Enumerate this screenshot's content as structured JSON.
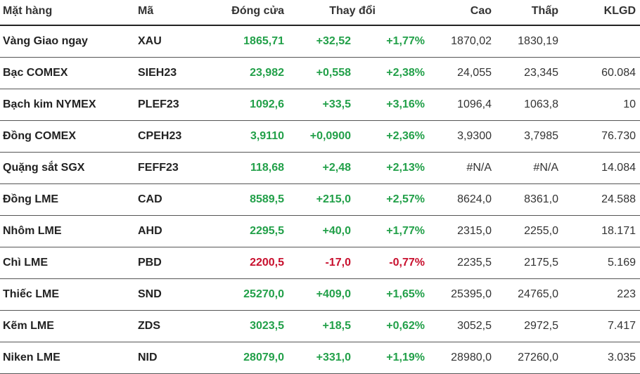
{
  "table": {
    "headers": {
      "name": "Mặt hàng",
      "code": "Mã",
      "close": "Đóng cửa",
      "change": "Thay đổi",
      "high": "Cao",
      "low": "Thấp",
      "volume": "KLGD"
    },
    "rows": [
      {
        "name": "Vàng Giao ngay",
        "code": "XAU",
        "close": "1865,71",
        "change": "+32,52",
        "pct": "+1,77%",
        "high": "1870,02",
        "low": "1830,19",
        "volume": "",
        "direction": "up"
      },
      {
        "name": "Bạc COMEX",
        "code": "SIEH23",
        "close": "23,982",
        "change": "+0,558",
        "pct": "+2,38%",
        "high": "24,055",
        "low": "23,345",
        "volume": "60.084",
        "direction": "up"
      },
      {
        "name": "Bạch kim NYMEX",
        "code": "PLEF23",
        "close": "1092,6",
        "change": "+33,5",
        "pct": "+3,16%",
        "high": "1096,4",
        "low": "1063,8",
        "volume": "10",
        "direction": "up"
      },
      {
        "name": "Đồng COMEX",
        "code": "CPEH23",
        "close": "3,9110",
        "change": "+0,0900",
        "pct": "+2,36%",
        "high": "3,9300",
        "low": "3,7985",
        "volume": "76.730",
        "direction": "up"
      },
      {
        "name": "Quặng sắt SGX",
        "code": "FEFF23",
        "close": "118,68",
        "change": "+2,48",
        "pct": "+2,13%",
        "high": "#N/A",
        "low": "#N/A",
        "volume": "14.084",
        "direction": "up"
      },
      {
        "name": "Đồng LME",
        "code": "CAD",
        "close": "8589,5",
        "change": "+215,0",
        "pct": "+2,57%",
        "high": "8624,0",
        "low": "8361,0",
        "volume": "24.588",
        "direction": "up"
      },
      {
        "name": "Nhôm LME",
        "code": "AHD",
        "close": "2295,5",
        "change": "+40,0",
        "pct": "+1,77%",
        "high": "2315,0",
        "low": "2255,0",
        "volume": "18.171",
        "direction": "up"
      },
      {
        "name": "Chì LME",
        "code": "PBD",
        "close": "2200,5",
        "change": "-17,0",
        "pct": "-0,77%",
        "high": "2235,5",
        "low": "2175,5",
        "volume": "5.169",
        "direction": "down"
      },
      {
        "name": "Thiếc LME",
        "code": "SND",
        "close": "25270,0",
        "change": "+409,0",
        "pct": "+1,65%",
        "high": "25395,0",
        "low": "24765,0",
        "volume": "223",
        "direction": "up"
      },
      {
        "name": "Kẽm LME",
        "code": "ZDS",
        "close": "3023,5",
        "change": "+18,5",
        "pct": "+0,62%",
        "high": "3052,5",
        "low": "2972,5",
        "volume": "7.417",
        "direction": "up"
      },
      {
        "name": "Niken LME",
        "code": "NID",
        "close": "28079,0",
        "change": "+331,0",
        "pct": "+1,19%",
        "high": "28980,0",
        "low": "27260,0",
        "volume": "3.035",
        "direction": "up"
      }
    ]
  },
  "colors": {
    "up": "#22a049",
    "down": "#c8102e"
  }
}
